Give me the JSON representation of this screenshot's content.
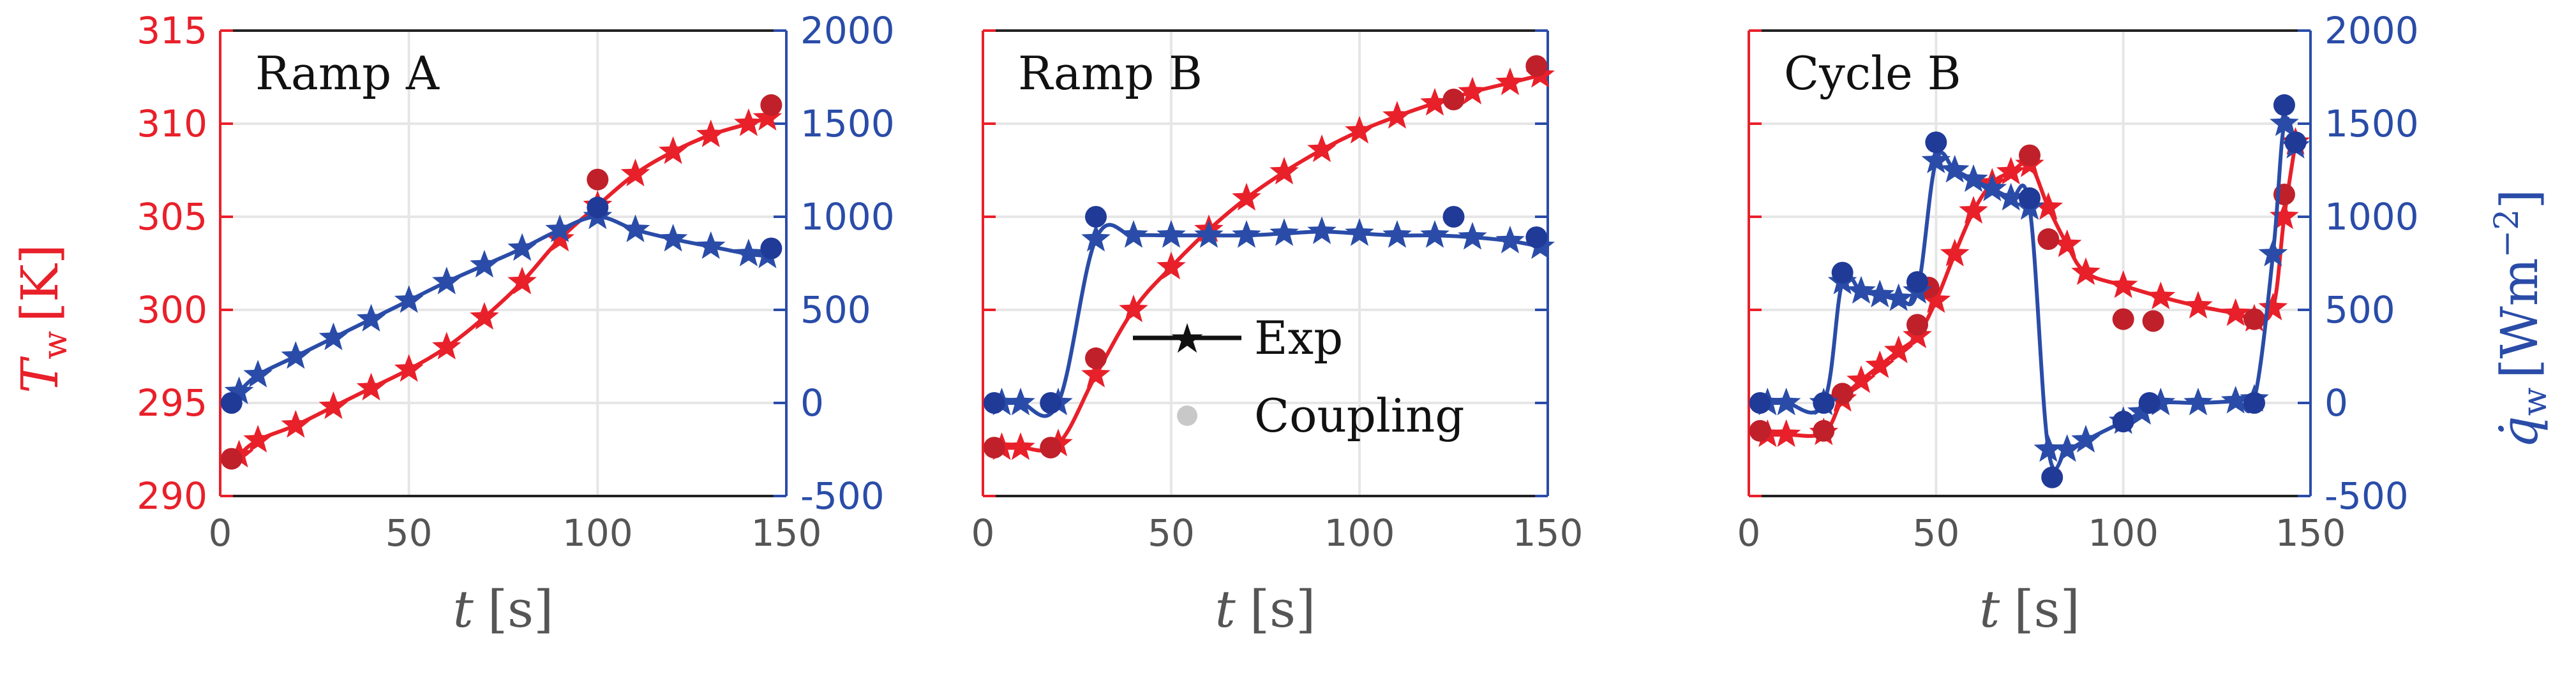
{
  "colors": {
    "temperature": "#e8202a",
    "temperature_coupling": "#c0202a",
    "heatflux": "#2a4ca8",
    "heatflux_coupling": "#203a98",
    "grid": "#e6e6e6",
    "text": "#555555"
  },
  "legend": {
    "exp_label": "Exp",
    "coupling_label": "Coupling"
  },
  "chart_data": [
    {
      "type": "line",
      "panel": "Ramp A",
      "xlabel": "t [s]",
      "xlim": [
        0,
        150
      ],
      "xticks": [
        0,
        50,
        100,
        150
      ],
      "ylabel_left": "T_w [K]",
      "ylim_left": [
        290,
        315
      ],
      "yticks_left": [
        290,
        295,
        300,
        305,
        310,
        315
      ],
      "ylabel_right": "q̇_w [W m^-2]",
      "ylim_right": [
        -500,
        2000
      ],
      "yticks_right": [
        -500,
        0,
        500,
        1000,
        1500,
        2000
      ],
      "grid": true,
      "series": [
        {
          "name": "Tw Exp",
          "axis": "left",
          "marker": "star",
          "x": [
            5,
            10,
            20,
            30,
            40,
            50,
            60,
            70,
            80,
            90,
            100,
            110,
            120,
            130,
            140,
            145
          ],
          "y": [
            292.2,
            293,
            293.8,
            294.8,
            295.8,
            296.8,
            298,
            299.6,
            301.5,
            303.8,
            305.6,
            307.3,
            308.5,
            309.4,
            310,
            310.3
          ]
        },
        {
          "name": "Tw Coupling",
          "axis": "left",
          "marker": "circle",
          "x": [
            3,
            100,
            146
          ],
          "y": [
            292,
            307,
            311
          ]
        },
        {
          "name": "qw Exp",
          "axis": "right",
          "marker": "star",
          "x": [
            5,
            10,
            20,
            30,
            40,
            50,
            60,
            70,
            80,
            90,
            100,
            110,
            120,
            130,
            140,
            145
          ],
          "y": [
            60,
            150,
            250,
            350,
            450,
            550,
            650,
            740,
            830,
            930,
            1000,
            930,
            880,
            840,
            800,
            790
          ]
        },
        {
          "name": "qw Coupling",
          "axis": "right",
          "marker": "circle",
          "x": [
            3,
            100,
            146
          ],
          "y": [
            0,
            1050,
            830
          ]
        }
      ]
    },
    {
      "type": "line",
      "panel": "Ramp B",
      "xlabel": "t [s]",
      "xlim": [
        0,
        150
      ],
      "xticks": [
        0,
        50,
        100,
        150
      ],
      "ylim_left": [
        290,
        315
      ],
      "ylim_right": [
        -500,
        2000
      ],
      "grid": true,
      "series": [
        {
          "name": "Tw Exp",
          "axis": "left",
          "marker": "star",
          "x": [
            5,
            10,
            20,
            30,
            40,
            50,
            60,
            70,
            80,
            90,
            100,
            110,
            120,
            130,
            140,
            148
          ],
          "y": [
            292.6,
            292.6,
            292.8,
            296.5,
            300,
            302.3,
            304.3,
            306,
            307.4,
            308.6,
            309.6,
            310.4,
            311.1,
            311.7,
            312.2,
            312.6
          ]
        },
        {
          "name": "Tw Coupling",
          "axis": "left",
          "marker": "circle",
          "x": [
            3,
            18,
            30,
            125,
            147
          ],
          "y": [
            292.6,
            292.6,
            297.4,
            311.3,
            313.1
          ]
        },
        {
          "name": "qw Exp",
          "axis": "right",
          "marker": "star",
          "x": [
            5,
            10,
            20,
            30,
            40,
            50,
            60,
            70,
            80,
            90,
            100,
            110,
            120,
            130,
            140,
            148
          ],
          "y": [
            0,
            0,
            0,
            880,
            900,
            900,
            900,
            900,
            910,
            920,
            910,
            900,
            900,
            890,
            870,
            840
          ]
        },
        {
          "name": "qw Coupling",
          "axis": "right",
          "marker": "circle",
          "x": [
            3,
            18,
            30,
            125,
            147
          ],
          "y": [
            0,
            0,
            1000,
            1000,
            890
          ]
        }
      ]
    },
    {
      "type": "line",
      "panel": "Cycle B",
      "xlabel": "t [s]",
      "xlim": [
        0,
        150
      ],
      "xticks": [
        0,
        50,
        100,
        150
      ],
      "ylim_left": [
        290,
        315
      ],
      "ylabel_right": "q̇_w [W m^-2]",
      "ylim_right": [
        -500,
        2000
      ],
      "yticks_right": [
        -500,
        0,
        500,
        1000,
        1500,
        2000
      ],
      "grid": true,
      "series": [
        {
          "name": "Tw Exp",
          "axis": "left",
          "marker": "star",
          "x": [
            5,
            10,
            20,
            25,
            30,
            35,
            40,
            45,
            50,
            55,
            60,
            65,
            70,
            75,
            80,
            85,
            90,
            100,
            110,
            120,
            130,
            135,
            140,
            143,
            146
          ],
          "y": [
            293.3,
            293.3,
            293.4,
            295.2,
            296.2,
            297,
            297.8,
            298.6,
            300.5,
            303,
            305.3,
            306.8,
            307.4,
            307.8,
            305.5,
            303.5,
            302,
            301.3,
            300.7,
            300.2,
            299.8,
            299.5,
            300.1,
            305,
            309
          ]
        },
        {
          "name": "Tw Coupling",
          "axis": "left",
          "marker": "circle",
          "x": [
            3,
            20,
            25,
            45,
            48,
            75,
            80,
            100,
            108,
            135,
            143,
            146
          ],
          "y": [
            293.5,
            293.5,
            295.5,
            299.2,
            301.2,
            308.3,
            303.8,
            299.5,
            299.4,
            299.5,
            306.2,
            309
          ]
        },
        {
          "name": "qw Exp",
          "axis": "right",
          "marker": "star",
          "x": [
            5,
            10,
            20,
            25,
            30,
            35,
            40,
            45,
            50,
            55,
            60,
            65,
            70,
            75,
            80,
            85,
            90,
            100,
            105,
            110,
            120,
            130,
            135,
            140,
            143,
            146
          ],
          "y": [
            0,
            0,
            0,
            650,
            600,
            580,
            560,
            600,
            1300,
            1250,
            1200,
            1150,
            1100,
            1050,
            -250,
            -250,
            -200,
            -100,
            -50,
            0,
            0,
            10,
            20,
            800,
            1500,
            1380
          ]
        },
        {
          "name": "qw Coupling",
          "axis": "right",
          "marker": "circle",
          "x": [
            3,
            20,
            25,
            45,
            50,
            75,
            81,
            100,
            107,
            135,
            143,
            146
          ],
          "y": [
            0,
            0,
            700,
            650,
            1400,
            1100,
            -400,
            -100,
            0,
            0,
            1600,
            1400
          ]
        }
      ]
    }
  ]
}
